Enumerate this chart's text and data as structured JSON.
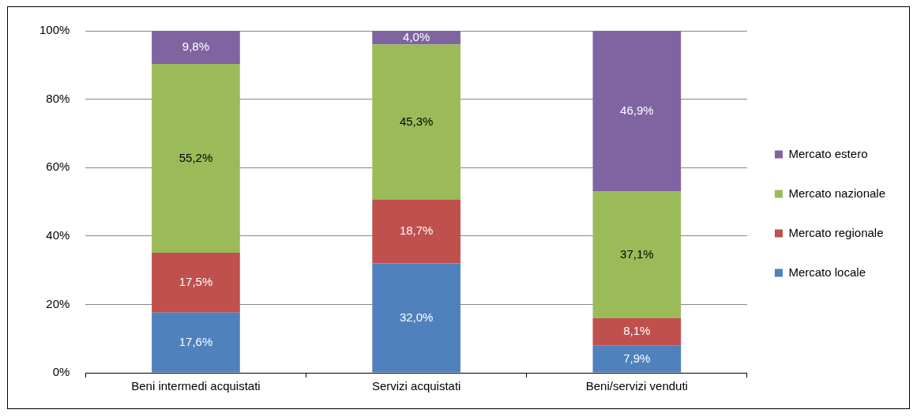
{
  "chart_data": {
    "type": "bar",
    "stacked": true,
    "categories": [
      "Beni intermedi acquistati",
      "Servizi acquistati",
      "Beni/servizi venduti"
    ],
    "series": [
      {
        "name": "Mercato locale",
        "color": "#4f81bd",
        "values": [
          17.6,
          32.0,
          7.9
        ],
        "value_labels": [
          "17,6%",
          "32,0%",
          "7,9%"
        ]
      },
      {
        "name": "Mercato regionale",
        "color": "#c0504d",
        "values": [
          17.5,
          18.7,
          8.1
        ],
        "value_labels": [
          "17,5%",
          "18,7%",
          "8,1%"
        ]
      },
      {
        "name": "Mercato nazionale",
        "color": "#9bbb59",
        "values": [
          55.2,
          45.3,
          37.1
        ],
        "value_labels": [
          "55,2%",
          "45,3%",
          "37,1%"
        ]
      },
      {
        "name": "Mercato estero",
        "color": "#8064a2",
        "values": [
          9.8,
          4.0,
          46.9
        ],
        "value_labels": [
          "9,8%",
          "4,0%",
          "46,9%"
        ]
      }
    ],
    "ylim": [
      0,
      100
    ],
    "yticks": [
      {
        "value": 0,
        "label": "0%"
      },
      {
        "value": 20,
        "label": "20%"
      },
      {
        "value": 40,
        "label": "40%"
      },
      {
        "value": 60,
        "label": "60%"
      },
      {
        "value": 80,
        "label": "80%"
      },
      {
        "value": 100,
        "label": "100%"
      }
    ],
    "grid": "y",
    "legend": "right"
  }
}
